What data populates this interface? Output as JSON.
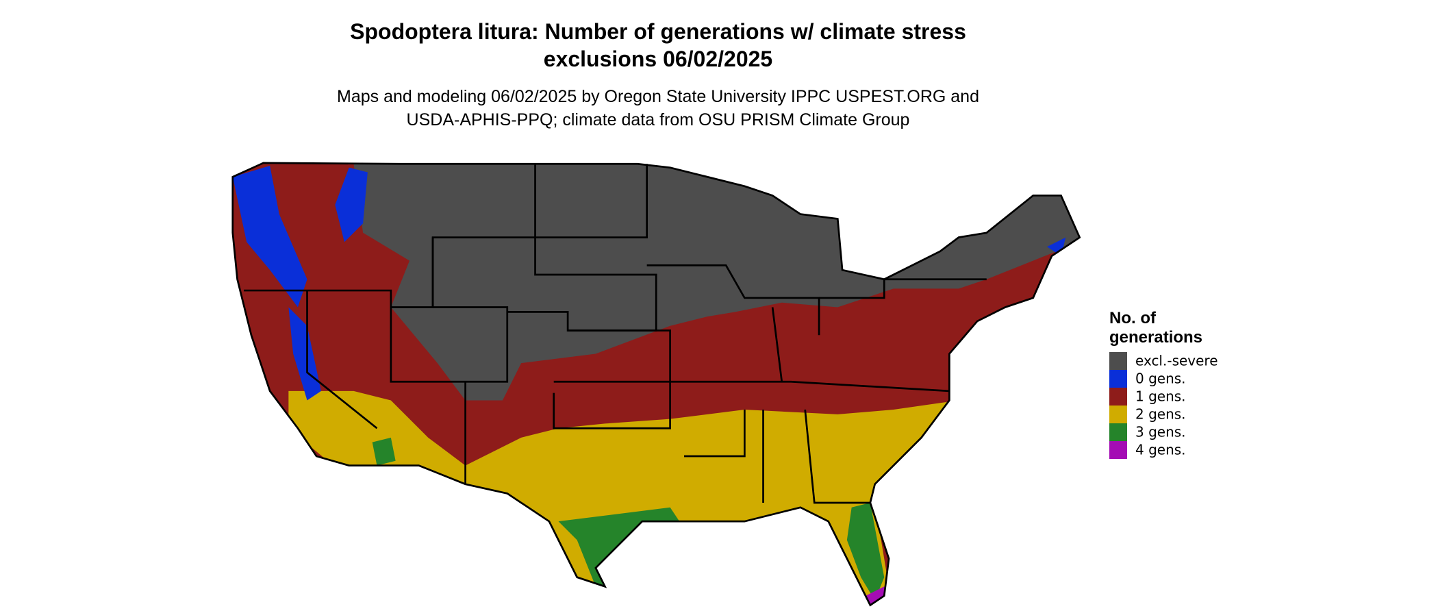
{
  "header": {
    "title": [
      "Spodoptera litura: Number of generations w/ climate stress",
      "exclusions 06/02/2025"
    ],
    "subtitle": [
      "Maps and modeling 06/02/2025 by Oregon State University IPPC USPEST.ORG and",
      "USDA-APHIS-PPQ; climate data from OSU PRISM Climate Group"
    ]
  },
  "legend": {
    "title": [
      "No. of",
      "generations"
    ],
    "items": [
      {
        "label": "excl.-severe",
        "color": "#4d4d4d"
      },
      {
        "label": "0 gens.",
        "color": "#0a2fd8"
      },
      {
        "label": "1 gens.",
        "color": "#8e1c1a"
      },
      {
        "label": "2 gens.",
        "color": "#d0ac00"
      },
      {
        "label": "3 gens.",
        "color": "#25842a"
      },
      {
        "label": "4 gens.",
        "color": "#a40cb4"
      }
    ]
  }
}
